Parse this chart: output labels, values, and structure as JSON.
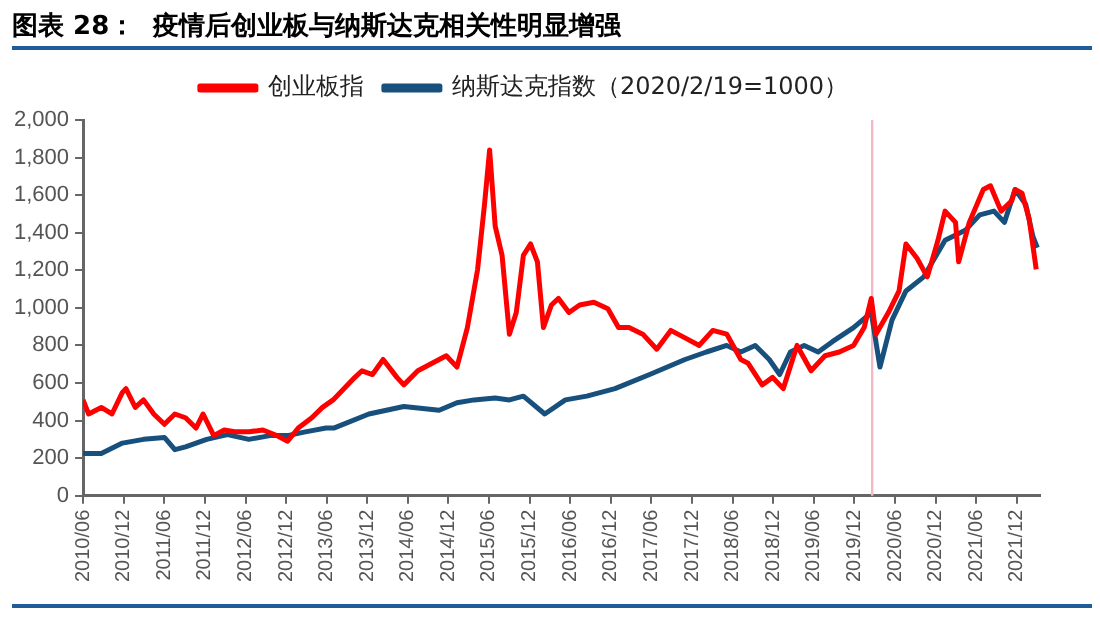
{
  "chart_data": {
    "type": "line",
    "title": "图表 28：  疫情后创业板与纳斯达克相关性明显增强",
    "legend": "top",
    "marker": "none",
    "grid": false,
    "xlim": [
      "2010-06-01",
      "2022-03-15"
    ],
    "xticks": [
      {
        "value": "2010-06",
        "label": "2010/06"
      },
      {
        "value": "2010-12",
        "label": "2010/12"
      },
      {
        "value": "2011-06",
        "label": "2011/06"
      },
      {
        "value": "2011-12",
        "label": "2011/12"
      },
      {
        "value": "2012-06",
        "label": "2012/06"
      },
      {
        "value": "2012-12",
        "label": "2012/12"
      },
      {
        "value": "2013-06",
        "label": "2013/06"
      },
      {
        "value": "2013-12",
        "label": "2013/12"
      },
      {
        "value": "2014-06",
        "label": "2014/06"
      },
      {
        "value": "2014-12",
        "label": "2014/12"
      },
      {
        "value": "2015-06",
        "label": "2015/06"
      },
      {
        "value": "2015-12",
        "label": "2015/12"
      },
      {
        "value": "2016-06",
        "label": "2016/06"
      },
      {
        "value": "2016-12",
        "label": "2016/12"
      },
      {
        "value": "2017-06",
        "label": "2017/06"
      },
      {
        "value": "2017-12",
        "label": "2017/12"
      },
      {
        "value": "2018-06",
        "label": "2018/06"
      },
      {
        "value": "2018-12",
        "label": "2018/12"
      },
      {
        "value": "2019-06",
        "label": "2019/06"
      },
      {
        "value": "2019-12",
        "label": "2019/12"
      },
      {
        "value": "2020-06",
        "label": "2020/06"
      },
      {
        "value": "2020-12",
        "label": "2020/12"
      },
      {
        "value": "2021-06",
        "label": "2021/06"
      },
      {
        "value": "2021-12",
        "label": "2021/12"
      }
    ],
    "ylim": [
      0,
      2000
    ],
    "yticks": [
      0,
      200,
      400,
      600,
      800,
      {
        "value": 1000,
        "label": "1,000"
      },
      {
        "value": 1200,
        "label": "1,200"
      },
      {
        "value": 1400,
        "label": "1,400"
      },
      {
        "value": 1600,
        "label": "1,600"
      },
      {
        "value": 1800,
        "label": "1,800"
      },
      {
        "value": 2000,
        "label": "2,000"
      }
    ],
    "ref_lines": [
      {
        "axis": "x",
        "value": "2020-02-19",
        "color": "#f4b8c4"
      }
    ],
    "series": [
      {
        "name": "创业板指",
        "color": "#ff0000",
        "x": [
          "2010-06-01",
          "2010-06-26",
          "2010-08-22",
          "2010-10-09",
          "2010-11-25",
          "2010-12-11",
          "2011-01-22",
          "2011-02-28",
          "2011-04-15",
          "2011-06-02",
          "2011-07-19",
          "2011-09-05",
          "2011-10-22",
          "2011-11-23",
          "2012-01-10",
          "2012-02-26",
          "2012-04-13",
          "2012-06-16",
          "2012-08-18",
          "2012-10-20",
          "2012-12-07",
          "2013-01-24",
          "2013-03-26",
          "2013-05-13",
          "2013-06-30",
          "2013-10-06",
          "2013-11-07",
          "2013-12-24",
          "2014-02-10",
          "2014-04-13",
          "2014-05-14",
          "2014-07-16",
          "2014-09-18",
          "2014-11-21",
          "2015-01-08",
          "2015-02-24",
          "2015-04-11",
          "2015-05-12",
          "2015-06-04",
          "2015-06-29",
          "2015-07-30",
          "2015-09-01",
          "2015-10-02",
          "2015-11-03",
          "2015-12-05",
          "2016-01-05",
          "2016-02-01",
          "2016-03-08",
          "2016-04-09",
          "2016-05-26",
          "2016-07-13",
          "2016-09-15",
          "2016-11-17",
          "2017-01-04",
          "2017-02-20",
          "2017-04-23",
          "2017-06-25",
          "2017-08-27",
          "2017-10-30",
          "2018-01-02",
          "2018-03-04",
          "2018-05-06",
          "2018-07-08",
          "2018-08-10",
          "2018-10-12",
          "2018-11-28",
          "2019-01-15",
          "2019-03-18",
          "2019-05-20",
          "2019-07-22",
          "2019-09-24",
          "2019-11-27",
          "2020-01-14",
          "2020-02-15",
          "2020-03-07",
          "2020-05-02",
          "2020-06-19",
          "2020-07-20",
          "2020-09-07",
          "2020-10-24",
          "2020-12-11",
          "2021-01-12",
          "2021-02-28",
          "2021-03-14",
          "2021-05-01",
          "2021-07-03",
          "2021-08-04",
          "2021-09-21",
          "2021-11-08",
          "2021-11-23",
          "2021-12-24",
          "2022-01-25",
          "2022-02-26"
        ],
        "values": [
          510,
          435,
          470,
          435,
          550,
          570,
          470,
          510,
          435,
          380,
          435,
          415,
          360,
          435,
          320,
          350,
          340,
          340,
          350,
          320,
          290,
          360,
          415,
          470,
          510,
          630,
          665,
          645,
          725,
          630,
          590,
          665,
          705,
          745,
          685,
          895,
          1205,
          1550,
          1840,
          1435,
          1280,
          860,
          975,
          1280,
          1340,
          1245,
          895,
          1015,
          1050,
          975,
          1015,
          1030,
          995,
          895,
          895,
          860,
          780,
          880,
          840,
          800,
          880,
          860,
          725,
          705,
          590,
          630,
          570,
          800,
          665,
          745,
          765,
          800,
          895,
          1050,
          860,
          975,
          1090,
          1340,
          1265,
          1165,
          1360,
          1515,
          1455,
          1245,
          1455,
          1630,
          1650,
          1515,
          1570,
          1630,
          1610,
          1475,
          1205
        ]
      },
      {
        "name": "纳斯达克指数（2020/2/19=1000）",
        "color": "#17507d",
        "x": [
          "2010-06-01",
          "2010-08-22",
          "2010-11-25",
          "2011-02-28",
          "2011-06-02",
          "2011-07-19",
          "2011-09-05",
          "2011-12-09",
          "2012-03-12",
          "2012-06-16",
          "2012-09-19",
          "2012-12-07",
          "2013-02-25",
          "2013-05-29",
          "2013-07-03",
          "2013-12-08",
          "2014-05-14",
          "2014-10-20",
          "2015-01-08",
          "2015-03-26",
          "2015-06-29",
          "2015-09-01",
          "2015-11-03",
          "2016-02-07",
          "2016-05-10",
          "2016-08-14",
          "2016-12-19",
          "2017-05-24",
          "2017-10-30",
          "2018-02-03",
          "2018-05-06",
          "2018-07-08",
          "2018-09-11",
          "2018-11-13",
          "2018-12-30",
          "2019-02-16",
          "2019-04-19",
          "2019-06-21",
          "2019-08-24",
          "2019-11-27",
          "2020-02-15",
          "2020-03-25",
          "2020-05-18",
          "2020-07-20",
          "2020-10-08",
          "2021-01-12",
          "2021-04-15",
          "2021-06-17",
          "2021-08-20",
          "2021-10-06",
          "2021-11-23",
          "2022-01-10",
          "2022-02-11",
          "2022-03-03"
        ],
        "values": [
          225,
          225,
          280,
          300,
          310,
          245,
          260,
          300,
          325,
          300,
          320,
          320,
          340,
          360,
          360,
          435,
          475,
          455,
          495,
          510,
          520,
          510,
          530,
          435,
          510,
          530,
          570,
          645,
          725,
          765,
          800,
          765,
          800,
          725,
          645,
          765,
          800,
          765,
          820,
          895,
          975,
          685,
          935,
          1090,
          1165,
          1360,
          1415,
          1495,
          1515,
          1455,
          1630,
          1550,
          1380,
          1320
        ]
      }
    ]
  }
}
